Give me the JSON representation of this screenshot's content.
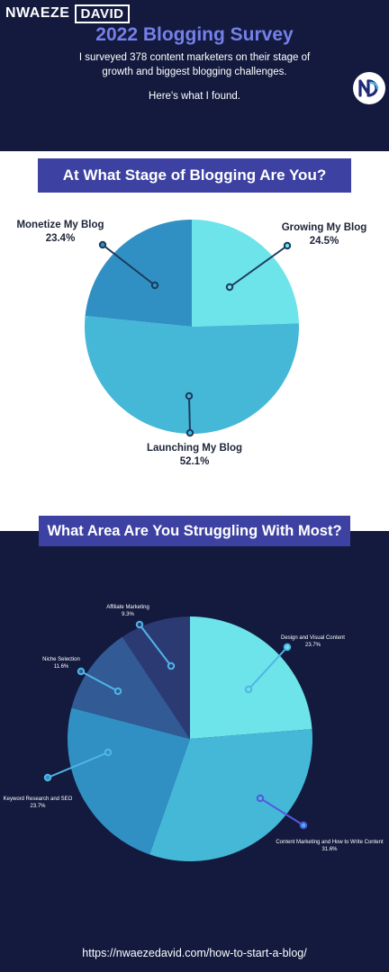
{
  "header": {
    "brand_first": "NWAEZE",
    "brand_last": "DAVID",
    "title": "2022 Blogging Survey",
    "intro": "I surveyed 378 content marketers on their stage of growth and biggest blogging challenges.",
    "found": "Here's what I found.",
    "logo_text": "ND"
  },
  "colors": {
    "navy": "#131a3e",
    "banner": "#3d42a2",
    "title_blue": "#7580e8",
    "cyan": "#6de3ea",
    "sky": "#45b8d8",
    "mid_blue": "#3190c3",
    "steel_blue": "#325a95",
    "dark_indigo": "#2c3a74"
  },
  "chart_data": [
    {
      "type": "pie",
      "title": "At What Stage of Blogging Are You?",
      "slices": [
        {
          "label": "Growing My Blog",
          "value": 24.5,
          "display": "24.5%",
          "color": "#6de3ea"
        },
        {
          "label": "Launching My Blog",
          "value": 52.1,
          "display": "52.1%",
          "color": "#45b8d8"
        },
        {
          "label": "Monetize My Blog",
          "value": 23.4,
          "display": "23.4%",
          "color": "#3190c3"
        }
      ]
    },
    {
      "type": "pie",
      "title": "What Area Are You Struggling With Most?",
      "slices": [
        {
          "label": "Design and Visual Content",
          "value": 23.7,
          "display": "23.7%",
          "color": "#6de3ea"
        },
        {
          "label": "Content Marketing and How to Write Content",
          "value": 31.6,
          "display": "31.6%",
          "color": "#45b8d8"
        },
        {
          "label": "Keyword Research and SEO",
          "value": 23.7,
          "display": "23.7%",
          "color": "#3190c3"
        },
        {
          "label": "Niche Selection",
          "value": 11.6,
          "display": "11.6%",
          "color": "#325a95"
        },
        {
          "label": "Affiliate Marketing",
          "value": 9.3,
          "display": "9.3%",
          "color": "#2c3a74"
        }
      ]
    }
  ],
  "footer": {
    "url": "https://nwaezedavid.com/how-to-start-a-blog/"
  }
}
